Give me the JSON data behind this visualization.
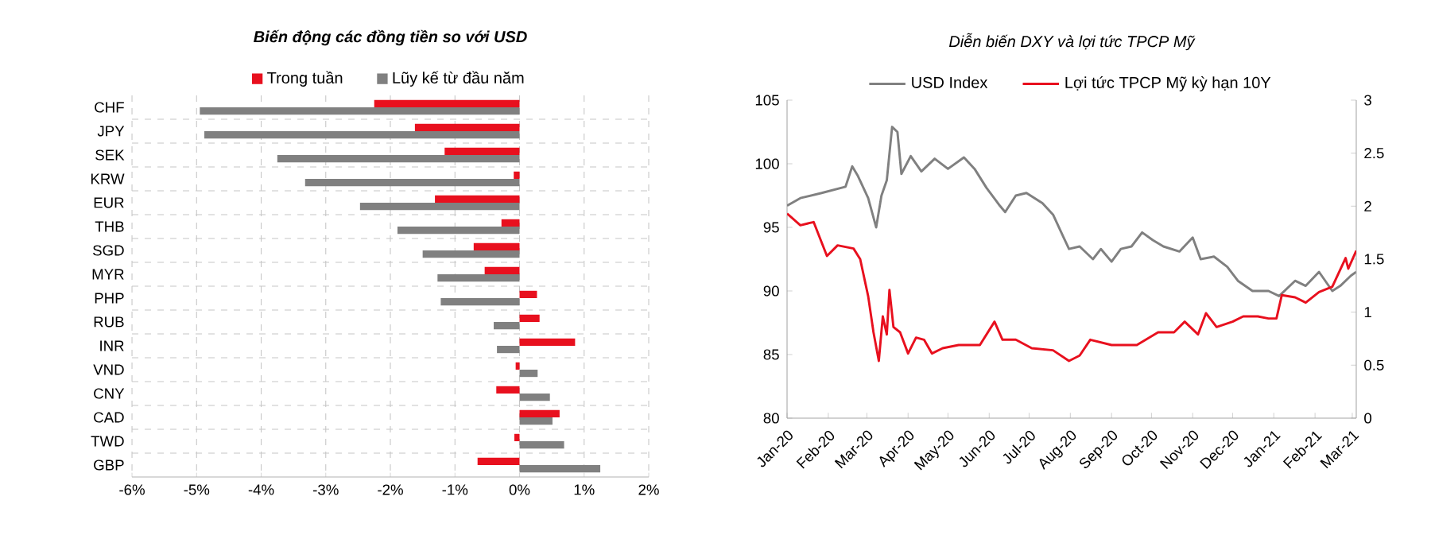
{
  "chart_data": [
    {
      "type": "bar",
      "orientation": "horizontal",
      "title": "Biến động các đồng tiền so với USD",
      "categories": [
        "CHF",
        "JPY",
        "SEK",
        "KRW",
        "EUR",
        "THB",
        "SGD",
        "MYR",
        "PHP",
        "RUB",
        "INR",
        "VND",
        "CNY",
        "CAD",
        "TWD",
        "GBP"
      ],
      "series": [
        {
          "name": "Trong tuần",
          "color": "#e8101e",
          "values": [
            -2.25,
            -1.62,
            -1.16,
            -0.09,
            -1.31,
            -0.28,
            -0.71,
            -0.54,
            0.27,
            0.31,
            0.86,
            -0.06,
            -0.36,
            0.62,
            -0.08,
            -0.65
          ]
        },
        {
          "name": "Lũy kế từ đầu năm",
          "color": "#808080",
          "values": [
            -4.95,
            -4.88,
            -3.75,
            -3.32,
            -2.47,
            -1.89,
            -1.5,
            -1.27,
            -1.22,
            -0.4,
            -0.35,
            0.28,
            0.47,
            0.51,
            0.69,
            1.25
          ]
        }
      ],
      "xlim": [
        -6,
        2
      ],
      "xticks": [
        {
          "value": -6,
          "label": "-6%"
        },
        {
          "value": -5,
          "label": "-5%"
        },
        {
          "value": -4,
          "label": "-4%"
        },
        {
          "value": -3,
          "label": "-3%"
        },
        {
          "value": -2,
          "label": "-2%"
        },
        {
          "value": -1,
          "label": "-1%"
        },
        {
          "value": 0,
          "label": "0%"
        },
        {
          "value": 1,
          "label": "1%"
        },
        {
          "value": 2,
          "label": "2%"
        }
      ],
      "grid": true,
      "legend": "top"
    },
    {
      "type": "line",
      "title": "Diễn biến DXY và lợi tức TPCP Mỹ",
      "series": [
        {
          "name": "USD Index",
          "color": "#808080",
          "axis": "y",
          "x": [
            "2020-01-01",
            "2020-01-11",
            "2020-01-27",
            "2020-02-14",
            "2020-02-19",
            "2020-02-23",
            "2020-03-02",
            "2020-03-08",
            "2020-03-12",
            "2020-03-16",
            "2020-03-20",
            "2020-03-24",
            "2020-03-27",
            "2020-04-03",
            "2020-04-11",
            "2020-04-21",
            "2020-05-01",
            "2020-05-13",
            "2020-05-21",
            "2020-05-30",
            "2020-06-09",
            "2020-06-13",
            "2020-06-21",
            "2020-06-29",
            "2020-07-11",
            "2020-07-19",
            "2020-07-27",
            "2020-07-31",
            "2020-08-08",
            "2020-08-18",
            "2020-08-24",
            "2020-09-01",
            "2020-09-08",
            "2020-09-16",
            "2020-09-24",
            "2020-10-02",
            "2020-10-10",
            "2020-10-22",
            "2020-11-01",
            "2020-11-07",
            "2020-11-17",
            "2020-11-27",
            "2020-12-05",
            "2020-12-16",
            "2020-12-28",
            "2021-01-05",
            "2021-01-17",
            "2021-01-25",
            "2021-02-04",
            "2021-02-14",
            "2021-02-20",
            "2021-02-28",
            "2021-03-04"
          ],
          "values": [
            96.7,
            97.3,
            97.7,
            98.2,
            99.8,
            99.1,
            97.3,
            95.0,
            97.5,
            98.7,
            102.9,
            102.5,
            99.2,
            100.6,
            99.4,
            100.4,
            99.6,
            100.5,
            99.6,
            98.1,
            96.7,
            96.2,
            97.5,
            97.7,
            96.9,
            96.0,
            94.2,
            93.3,
            93.5,
            92.5,
            93.3,
            92.3,
            93.3,
            93.5,
            94.6,
            94.0,
            93.5,
            93.1,
            94.2,
            92.5,
            92.7,
            91.9,
            90.8,
            90.0,
            90.0,
            89.6,
            90.8,
            90.4,
            91.5,
            90.0,
            90.4,
            91.2,
            91.5
          ]
        },
        {
          "name": "Lợi tức TPCP Mỹ kỳ hạn 10Y",
          "color": "#e8101e",
          "axis": "y2",
          "x": [
            "2020-01-01",
            "2020-01-11",
            "2020-01-21",
            "2020-01-31",
            "2020-02-08",
            "2020-02-20",
            "2020-02-25",
            "2020-03-02",
            "2020-03-06",
            "2020-03-10",
            "2020-03-13",
            "2020-03-16",
            "2020-03-18",
            "2020-03-21",
            "2020-03-26",
            "2020-04-01",
            "2020-04-07",
            "2020-04-13",
            "2020-04-19",
            "2020-04-27",
            "2020-05-09",
            "2020-05-25",
            "2020-06-05",
            "2020-06-11",
            "2020-06-21",
            "2020-07-03",
            "2020-07-19",
            "2020-07-31",
            "2020-08-08",
            "2020-08-16",
            "2020-09-01",
            "2020-09-20",
            "2020-10-06",
            "2020-10-18",
            "2020-10-26",
            "2020-11-05",
            "2020-11-11",
            "2020-11-19",
            "2020-12-01",
            "2020-12-09",
            "2020-12-20",
            "2020-12-28",
            "2021-01-03",
            "2021-01-07",
            "2021-01-17",
            "2021-01-25",
            "2021-02-04",
            "2021-02-14",
            "2021-02-24",
            "2021-02-26",
            "2021-03-04"
          ],
          "values": [
            1.93,
            1.82,
            1.85,
            1.53,
            1.63,
            1.6,
            1.5,
            1.15,
            0.81,
            0.54,
            0.96,
            0.79,
            1.21,
            0.86,
            0.81,
            0.61,
            0.76,
            0.74,
            0.61,
            0.66,
            0.69,
            0.69,
            0.91,
            0.74,
            0.74,
            0.66,
            0.64,
            0.54,
            0.59,
            0.74,
            0.69,
            0.69,
            0.81,
            0.81,
            0.91,
            0.79,
            0.99,
            0.86,
            0.91,
            0.96,
            0.96,
            0.94,
            0.94,
            1.16,
            1.14,
            1.09,
            1.19,
            1.24,
            1.51,
            1.41,
            1.58
          ]
        }
      ],
      "xlim": [
        "2020-01-01",
        "2021-03-04"
      ],
      "xticks": [
        {
          "value": "2020-01-01",
          "label": "Jan-20"
        },
        {
          "value": "2020-02-01",
          "label": "Feb-20"
        },
        {
          "value": "2020-03-01",
          "label": "Mar-20"
        },
        {
          "value": "2020-04-01",
          "label": "Apr-20"
        },
        {
          "value": "2020-05-01",
          "label": "May-20"
        },
        {
          "value": "2020-06-01",
          "label": "Jun-20"
        },
        {
          "value": "2020-07-01",
          "label": "Jul-20"
        },
        {
          "value": "2020-08-01",
          "label": "Aug-20"
        },
        {
          "value": "2020-09-01",
          "label": "Sep-20"
        },
        {
          "value": "2020-10-01",
          "label": "Oct-20"
        },
        {
          "value": "2020-11-01",
          "label": "Nov-20"
        },
        {
          "value": "2020-12-01",
          "label": "Dec-20"
        },
        {
          "value": "2021-01-01",
          "label": "Jan-21"
        },
        {
          "value": "2021-02-01",
          "label": "Feb-21"
        },
        {
          "value": "2021-03-01",
          "label": "Mar-21"
        }
      ],
      "ylim": [
        80,
        105
      ],
      "yticks": [
        80,
        85,
        90,
        95,
        100,
        105
      ],
      "y2lim": [
        0,
        3
      ],
      "y2ticks": [
        0,
        0.5,
        1,
        1.5,
        2,
        2.5,
        3
      ],
      "legend": "top"
    }
  ]
}
